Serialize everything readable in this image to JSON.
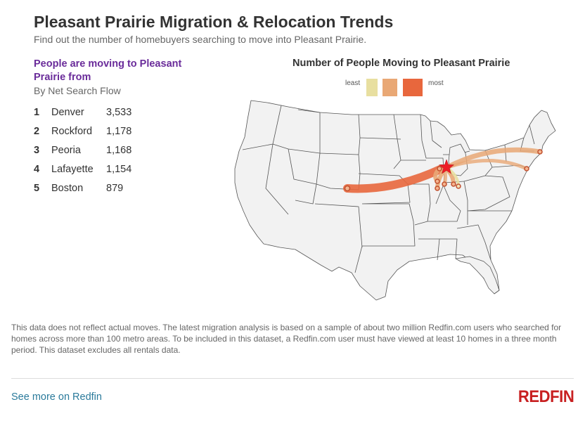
{
  "header": {
    "title": "Pleasant Prairie Migration & Relocation Trends",
    "subtitle": "Find out the number of homebuyers searching to move into Pleasant Prairie."
  },
  "ranking": {
    "heading": "People are moving to Pleasant Prairie from",
    "sub": "By Net Search Flow",
    "items": [
      {
        "rank": "1",
        "city": "Denver",
        "count": "3,533"
      },
      {
        "rank": "2",
        "city": "Rockford",
        "count": "1,178"
      },
      {
        "rank": "3",
        "city": "Peoria",
        "count": "1,168"
      },
      {
        "rank": "4",
        "city": "Lafayette",
        "count": "1,154"
      },
      {
        "rank": "5",
        "city": "Boston",
        "count": "879"
      }
    ]
  },
  "map": {
    "title": "Number of People Moving to Pleasant Prairie",
    "legend_least": "least",
    "legend_most": "most",
    "legend_colors": [
      "#e8dfa0",
      "#e9a875",
      "#e8673d"
    ],
    "state_fill": "#f2f2f2",
    "state_stroke": "#555555",
    "destination_color": "#ee1c25",
    "flows": [
      {
        "from": "Denver",
        "value": 3533
      },
      {
        "from": "Rockford",
        "value": 1178
      },
      {
        "from": "Peoria",
        "value": 1168
      },
      {
        "from": "Lafayette",
        "value": 1154
      },
      {
        "from": "Boston",
        "value": 879
      }
    ]
  },
  "footer": {
    "disclaimer": "This data does not reflect actual moves. The latest migration analysis is based on a sample of about two million Redfin.com users who searched for homes across more than 100 metro areas. To be included in this dataset, a Redfin.com user must have viewed at least 10 homes in a three month period. This dataset excludes all rentals data.",
    "link": "See more on Redfin",
    "logo": "REDFIN"
  }
}
